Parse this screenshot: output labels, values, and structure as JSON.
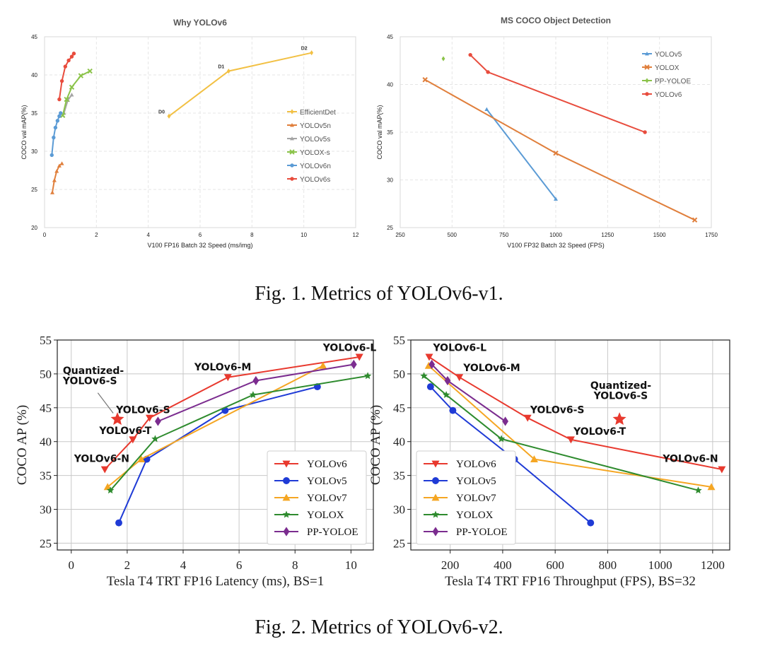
{
  "captions": {
    "fig1": "Fig. 1.  Metrics of YOLOv6-v1.",
    "fig2": "Fig. 2.  Metrics of YOLOv6-v2."
  },
  "chart_data": [
    {
      "id": "c1",
      "type": "line",
      "style": "light",
      "title": "Why YOLOv6",
      "xlabel": "V100 FP16 Batch 32 Speed (ms/img)",
      "ylabel": "COCO val mAP(%)",
      "xlim": [
        0,
        12
      ],
      "ylim": [
        20,
        45
      ],
      "xticks": [
        0,
        2,
        4,
        6,
        8,
        10,
        12
      ],
      "yticks": [
        20,
        25,
        30,
        35,
        40,
        45
      ],
      "legend": "right-middle",
      "series": [
        {
          "name": "EfficientDet",
          "color": "#f2c043",
          "marker": "diamond",
          "x": [
            4.8,
            7.1,
            10.3
          ],
          "y": [
            34.6,
            40.5,
            42.9
          ],
          "labels": [
            "D0",
            "D1",
            "D2"
          ]
        },
        {
          "name": "YOLOv5n",
          "color": "#e07f3c",
          "marker": "triangle",
          "x": [
            0.3,
            0.38,
            0.47,
            0.57,
            0.67
          ],
          "y": [
            24.6,
            26.2,
            27.4,
            28.1,
            28.4
          ]
        },
        {
          "name": "YOLOv5s",
          "color": "#a5a5a5",
          "marker": "triangle",
          "x": [
            0.75,
            0.9,
            1.05
          ],
          "y": [
            35.0,
            36.7,
            37.4
          ]
        },
        {
          "name": "YOLOX-s",
          "color": "#8bc34a",
          "marker": "x",
          "x": [
            0.7,
            0.85,
            1.05,
            1.4,
            1.75
          ],
          "y": [
            34.7,
            36.8,
            38.4,
            39.9,
            40.5
          ]
        },
        {
          "name": "YOLOv6n",
          "color": "#5b9bd5",
          "marker": "circle",
          "x": [
            0.28,
            0.35,
            0.42,
            0.5,
            0.57,
            0.62
          ],
          "y": [
            29.5,
            31.8,
            33.1,
            34.0,
            34.6,
            35.0
          ]
        },
        {
          "name": "YOLOv6s",
          "color": "#e84c3d",
          "marker": "circle",
          "x": [
            0.57,
            0.67,
            0.8,
            0.93,
            1.05,
            1.13
          ],
          "y": [
            36.8,
            39.2,
            41.1,
            41.9,
            42.4,
            42.8
          ]
        }
      ]
    },
    {
      "id": "c2",
      "type": "line",
      "style": "light",
      "title": "MS COCO Object Detection",
      "xlabel": "V100 FP32 Batch 32 Speed (FPS)",
      "ylabel": "COCO val mAP(%)",
      "xlim": [
        250,
        1750
      ],
      "ylim": [
        25,
        45
      ],
      "xticks": [
        250,
        500,
        750,
        1000,
        1250,
        1500,
        1750
      ],
      "yticks": [
        25,
        30,
        35,
        40,
        45
      ],
      "legend": "top-right",
      "series": [
        {
          "name": "YOLOv5",
          "color": "#5b9bd5",
          "marker": "triangle",
          "x": [
            667,
            1000
          ],
          "y": [
            37.4,
            28.0
          ]
        },
        {
          "name": "YOLOX",
          "color": "#e07f3c",
          "marker": "x",
          "x": [
            370,
            1000,
            1670
          ],
          "y": [
            40.5,
            32.8,
            25.8
          ]
        },
        {
          "name": "PP-YOLOE",
          "color": "#8bc34a",
          "marker": "diamond",
          "x": [
            458
          ],
          "y": [
            42.7
          ]
        },
        {
          "name": "YOLOv6",
          "color": "#e84c3d",
          "marker": "circle",
          "x": [
            588,
            673,
            1430
          ],
          "y": [
            43.1,
            41.3,
            35.0
          ]
        }
      ]
    },
    {
      "id": "c3",
      "type": "line",
      "style": "bold",
      "xlabel": "Tesla T4 TRT FP16 Latency (ms), BS=1",
      "ylabel": "COCO AP (%)",
      "xlim": [
        -0.5,
        10.8
      ],
      "ylim": [
        24,
        55
      ],
      "xticks": [
        0,
        2,
        4,
        6,
        8,
        10
      ],
      "yticks": [
        25,
        30,
        35,
        40,
        45,
        50,
        55
      ],
      "legend": "bottom-right",
      "series": [
        {
          "name": "YOLOv6",
          "color": "#e8392e",
          "marker": "tri-down",
          "x": [
            1.2,
            2.2,
            2.8,
            5.6,
            10.3
          ],
          "y": [
            35.9,
            40.3,
            43.5,
            49.5,
            52.5
          ]
        },
        {
          "name": "YOLOv5",
          "color": "#1f3bd6",
          "marker": "circle",
          "x": [
            1.7,
            2.7,
            5.5,
            8.8
          ],
          "y": [
            28.0,
            37.4,
            44.6,
            48.1
          ]
        },
        {
          "name": "YOLOv7",
          "color": "#f5a623",
          "marker": "triangle",
          "x": [
            1.3,
            2.5,
            9.0
          ],
          "y": [
            33.3,
            37.4,
            51.2
          ]
        },
        {
          "name": "YOLOX",
          "color": "#2e8b2e",
          "marker": "star",
          "x": [
            1.4,
            3.0,
            6.5,
            10.6
          ],
          "y": [
            32.8,
            40.4,
            46.9,
            49.7
          ]
        },
        {
          "name": "PP-YOLOE",
          "color": "#7b2c8f",
          "marker": "diamond",
          "x": [
            3.1,
            6.6,
            10.1
          ],
          "y": [
            43.0,
            49.0,
            51.4
          ]
        }
      ],
      "highlight": {
        "x": 1.65,
        "y": 43.3,
        "color": "#e8392e"
      },
      "annotations": [
        {
          "text": "YOLOv6-N",
          "x": 0.1,
          "y": 37.0,
          "anchor": "start"
        },
        {
          "text": "YOLOv6-T",
          "x": 1.0,
          "y": 41.1,
          "anchor": "start"
        },
        {
          "text": "YOLOv6-S",
          "x": 1.6,
          "y": 44.2,
          "anchor": "start"
        },
        {
          "text": "YOLOv6-M",
          "x": 4.4,
          "y": 50.5,
          "anchor": "start"
        },
        {
          "text": "YOLOv6-L",
          "x": 9.0,
          "y": 53.4,
          "anchor": "start"
        },
        {
          "text": "Quantized-",
          "x": -0.3,
          "y": 50.0,
          "anchor": "start"
        },
        {
          "text": "YOLOv6-S",
          "x": -0.3,
          "y": 48.5,
          "anchor": "start"
        }
      ]
    },
    {
      "id": "c4",
      "type": "line",
      "style": "bold",
      "xlabel": "Tesla T4 TRT FP16 Throughput (FPS), BS=32",
      "ylabel": "COCO AP (%)",
      "xlim": [
        50,
        1265
      ],
      "ylim": [
        24,
        55
      ],
      "xticks": [
        200,
        400,
        600,
        800,
        1000,
        1200
      ],
      "yticks": [
        25,
        30,
        35,
        40,
        45,
        50,
        55
      ],
      "legend": "bottom-left",
      "series": [
        {
          "name": "YOLOv6",
          "color": "#e8392e",
          "marker": "tri-down",
          "x": [
            120,
            235,
            495,
            660,
            1235
          ],
          "y": [
            52.5,
            49.5,
            43.5,
            40.3,
            35.9
          ]
        },
        {
          "name": "YOLOv5",
          "color": "#1f3bd6",
          "marker": "circle",
          "x": [
            125,
            210,
            445,
            735
          ],
          "y": [
            48.1,
            44.6,
            37.4,
            28.0
          ]
        },
        {
          "name": "YOLOv7",
          "color": "#f5a623",
          "marker": "triangle",
          "x": [
            118,
            520,
            1195
          ],
          "y": [
            51.2,
            37.4,
            33.3
          ]
        },
        {
          "name": "YOLOX",
          "color": "#2e8b2e",
          "marker": "star",
          "x": [
            100,
            185,
            395,
            1145
          ],
          "y": [
            49.7,
            46.9,
            40.4,
            32.8
          ]
        },
        {
          "name": "PP-YOLOE",
          "color": "#7b2c8f",
          "marker": "diamond",
          "x": [
            130,
            190,
            410
          ],
          "y": [
            51.4,
            49.0,
            43.0
          ]
        }
      ],
      "highlight": {
        "x": 845,
        "y": 43.3,
        "color": "#e8392e"
      },
      "annotations": [
        {
          "text": "YOLOv6-L",
          "x": 135,
          "y": 53.4,
          "anchor": "start"
        },
        {
          "text": "YOLOv6-M",
          "x": 250,
          "y": 50.4,
          "anchor": "start"
        },
        {
          "text": "YOLOv6-S",
          "x": 505,
          "y": 44.2,
          "anchor": "start"
        },
        {
          "text": "YOLOv6-T",
          "x": 670,
          "y": 41.0,
          "anchor": "start"
        },
        {
          "text": "YOLOv6-N",
          "x": 1010,
          "y": 37.0,
          "anchor": "start"
        },
        {
          "text": "Quantized-",
          "x": 850,
          "y": 47.8,
          "anchor": "middle"
        },
        {
          "text": "YOLOv6-S",
          "x": 850,
          "y": 46.3,
          "anchor": "middle"
        }
      ]
    }
  ]
}
